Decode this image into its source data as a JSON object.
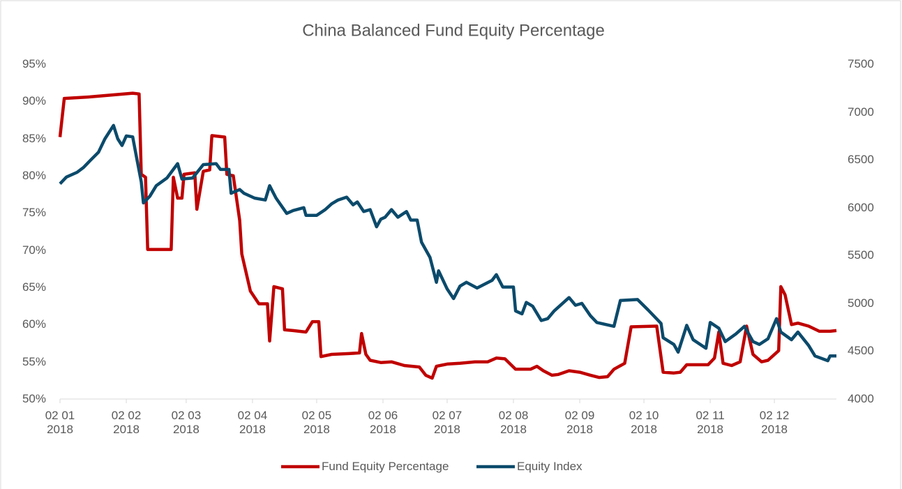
{
  "chart_data": {
    "type": "line",
    "title": "China Balanced Fund Equity Percentage",
    "xlim": [
      "2018-01-02",
      "2018-12-31"
    ],
    "xticks": [
      {
        "value": "2018-01-02",
        "label": "02 01\n2018"
      },
      {
        "value": "2018-02-02",
        "label": "02 02\n2018"
      },
      {
        "value": "2018-03-02",
        "label": "02 03\n2018"
      },
      {
        "value": "2018-04-02",
        "label": "02 04\n2018"
      },
      {
        "value": "2018-05-02",
        "label": "02 05\n2018"
      },
      {
        "value": "2018-06-02",
        "label": "02 06\n2018"
      },
      {
        "value": "2018-07-02",
        "label": "02 07\n2018"
      },
      {
        "value": "2018-08-02",
        "label": "02 08\n2018"
      },
      {
        "value": "2018-09-02",
        "label": "02 09\n2018"
      },
      {
        "value": "2018-10-02",
        "label": "02 10\n2018"
      },
      {
        "value": "2018-11-02",
        "label": "02 11\n2018"
      },
      {
        "value": "2018-12-02",
        "label": "02 12\n2018"
      }
    ],
    "ylim": [
      50,
      95
    ],
    "yticks": [
      {
        "value": 50,
        "label": "50%"
      },
      {
        "value": 55,
        "label": "55%"
      },
      {
        "value": 60,
        "label": "60%"
      },
      {
        "value": 65,
        "label": "65%"
      },
      {
        "value": 70,
        "label": "70%"
      },
      {
        "value": 75,
        "label": "75%"
      },
      {
        "value": 80,
        "label": "80%"
      },
      {
        "value": 85,
        "label": "85%"
      },
      {
        "value": 90,
        "label": "90%"
      },
      {
        "value": 95,
        "label": "95%"
      }
    ],
    "y2lim": [
      4000,
      7500
    ],
    "y2ticks": [
      4000,
      4500,
      5000,
      5500,
      6000,
      6500,
      7000,
      7500
    ],
    "legend": "bottom",
    "series": [
      {
        "name": "Fund Equity Percentage",
        "color": "#c00000",
        "x": [
          "2018-01-02",
          "2018-01-04",
          "2018-01-16",
          "2018-02-05",
          "2018-02-08",
          "2018-02-09",
          "2018-02-11",
          "2018-02-12",
          "2018-02-23",
          "2018-02-24",
          "2018-02-26",
          "2018-02-28",
          "2018-03-01",
          "2018-03-06",
          "2018-03-07",
          "2018-03-10",
          "2018-03-13",
          "2018-03-14",
          "2018-03-20",
          "2018-03-21",
          "2018-03-24",
          "2018-03-27",
          "2018-03-28",
          "2018-04-01",
          "2018-04-05",
          "2018-04-09",
          "2018-04-10",
          "2018-04-12",
          "2018-04-16",
          "2018-04-17",
          "2018-04-21",
          "2018-04-27",
          "2018-04-30",
          "2018-05-03",
          "2018-05-04",
          "2018-05-09",
          "2018-05-17",
          "2018-05-22",
          "2018-05-23",
          "2018-05-25",
          "2018-05-27",
          "2018-06-01",
          "2018-06-06",
          "2018-06-12",
          "2018-06-19",
          "2018-06-22",
          "2018-06-25",
          "2018-06-27",
          "2018-07-02",
          "2018-07-08",
          "2018-07-15",
          "2018-07-21",
          "2018-07-25",
          "2018-07-29",
          "2018-08-03",
          "2018-08-10",
          "2018-08-13",
          "2018-08-16",
          "2018-08-20",
          "2018-08-23",
          "2018-08-28",
          "2018-09-02",
          "2018-09-07",
          "2018-09-11",
          "2018-09-15",
          "2018-09-18",
          "2018-09-23",
          "2018-09-26",
          "2018-10-08",
          "2018-10-11",
          "2018-10-16",
          "2018-10-19",
          "2018-10-22",
          "2018-11-01",
          "2018-11-04",
          "2018-11-06",
          "2018-11-08",
          "2018-11-12",
          "2018-11-16",
          "2018-11-19",
          "2018-11-22",
          "2018-11-26",
          "2018-11-29",
          "2018-12-04",
          "2018-12-05",
          "2018-12-07",
          "2018-12-10",
          "2018-12-13",
          "2018-12-18",
          "2018-12-23",
          "2018-12-28",
          "2018-12-31"
        ],
        "values": [
          85.2,
          90.4,
          90.6,
          91.1,
          91.0,
          80.2,
          79.8,
          70.1,
          70.1,
          79.8,
          77,
          77,
          80.2,
          80.4,
          75.5,
          80.6,
          80.8,
          85.4,
          85.2,
          80.2,
          80,
          74,
          69.5,
          64.5,
          62.8,
          62.8,
          57.8,
          65.1,
          64.8,
          59.3,
          59.2,
          59,
          60.4,
          60.4,
          55.7,
          56,
          56.1,
          56.2,
          58.8,
          56,
          55.2,
          54.9,
          55,
          54.5,
          54.3,
          53.2,
          52.8,
          54.4,
          54.7,
          54.8,
          55,
          55,
          55.5,
          55.4,
          54,
          54,
          54.4,
          53.8,
          53.2,
          53.3,
          53.8,
          53.6,
          53.2,
          52.9,
          53,
          54,
          54.8,
          59.7,
          59.8,
          53.6,
          53.5,
          53.6,
          54.6,
          54.6,
          55.5,
          59,
          54.8,
          54.5,
          55,
          59.8,
          56,
          55,
          55.2,
          56.5,
          65.1,
          64,
          60,
          60.2,
          59.8,
          59.1,
          59.1,
          59.2
        ]
      },
      {
        "name": "Equity Index",
        "color": "#0b4a6b",
        "axis": "y2",
        "x": [
          "2018-01-02",
          "2018-01-05",
          "2018-01-10",
          "2018-01-13",
          "2018-01-16",
          "2018-01-20",
          "2018-01-23",
          "2018-01-27",
          "2018-01-29",
          "2018-01-31",
          "2018-02-02",
          "2018-02-05",
          "2018-02-07",
          "2018-02-09",
          "2018-02-10",
          "2018-02-13",
          "2018-02-16",
          "2018-02-21",
          "2018-02-26",
          "2018-02-28",
          "2018-03-05",
          "2018-03-10",
          "2018-03-16",
          "2018-03-18",
          "2018-03-22",
          "2018-03-23",
          "2018-03-27",
          "2018-03-29",
          "2018-04-03",
          "2018-04-08",
          "2018-04-10",
          "2018-04-13",
          "2018-04-18",
          "2018-04-21",
          "2018-04-26",
          "2018-04-27",
          "2018-05-02",
          "2018-05-06",
          "2018-05-09",
          "2018-05-12",
          "2018-05-16",
          "2018-05-19",
          "2018-05-21",
          "2018-05-24",
          "2018-05-27",
          "2018-05-30",
          "2018-06-01",
          "2018-06-03",
          "2018-06-06",
          "2018-06-09",
          "2018-06-13",
          "2018-06-15",
          "2018-06-18",
          "2018-06-20",
          "2018-06-24",
          "2018-06-27",
          "2018-06-28",
          "2018-07-02",
          "2018-07-05",
          "2018-07-08",
          "2018-07-11",
          "2018-07-16",
          "2018-07-23",
          "2018-07-25",
          "2018-07-28",
          "2018-08-02",
          "2018-08-03",
          "2018-08-06",
          "2018-08-08",
          "2018-08-11",
          "2018-08-15",
          "2018-08-18",
          "2018-08-21",
          "2018-08-28",
          "2018-08-31",
          "2018-09-03",
          "2018-09-07",
          "2018-09-10",
          "2018-09-18",
          "2018-09-21",
          "2018-09-29",
          "2018-10-04",
          "2018-10-10",
          "2018-10-11",
          "2018-10-16",
          "2018-10-18",
          "2018-10-22",
          "2018-10-25",
          "2018-10-31",
          "2018-11-02",
          "2018-11-06",
          "2018-11-09",
          "2018-11-14",
          "2018-11-18",
          "2018-11-22",
          "2018-11-25",
          "2018-11-29",
          "2018-12-03",
          "2018-12-05",
          "2018-12-10",
          "2018-12-13",
          "2018-12-18",
          "2018-12-21",
          "2018-12-27",
          "2018-12-28",
          "2018-12-31"
        ],
        "values": [
          6250,
          6320,
          6370,
          6420,
          6490,
          6580,
          6720,
          6860,
          6720,
          6650,
          6750,
          6740,
          6500,
          6270,
          6050,
          6120,
          6230,
          6310,
          6460,
          6300,
          6310,
          6450,
          6460,
          6400,
          6400,
          6150,
          6190,
          6150,
          6100,
          6080,
          6230,
          6100,
          5940,
          5970,
          6000,
          5920,
          5920,
          5980,
          6040,
          6080,
          6110,
          6030,
          6060,
          5960,
          5980,
          5800,
          5880,
          5900,
          5980,
          5900,
          5960,
          5870,
          5870,
          5640,
          5480,
          5220,
          5340,
          5150,
          5050,
          5180,
          5220,
          5160,
          5240,
          5300,
          5170,
          5170,
          4920,
          4890,
          5010,
          4970,
          4820,
          4840,
          4920,
          5060,
          4980,
          5000,
          4870,
          4800,
          4760,
          5030,
          5040,
          4930,
          4790,
          4640,
          4570,
          4490,
          4770,
          4620,
          4530,
          4800,
          4740,
          4600,
          4680,
          4760,
          4600,
          4570,
          4630,
          4840,
          4700,
          4620,
          4700,
          4560,
          4450,
          4400,
          4450,
          4450
        ]
      }
    ]
  }
}
